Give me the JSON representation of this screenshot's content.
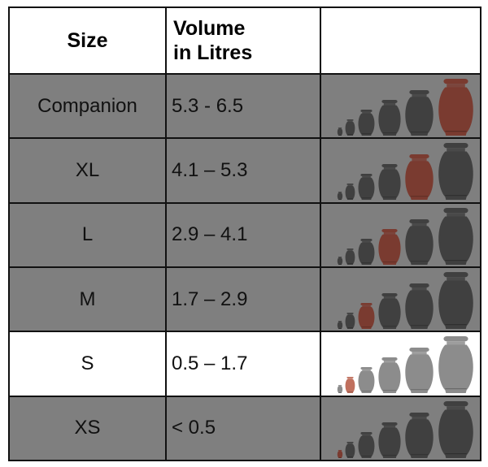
{
  "table": {
    "header": {
      "size": "Size",
      "volume_line1": "Volume",
      "volume_line2": "in Litres",
      "picture": ""
    },
    "rows": [
      {
        "size": "Companion",
        "volume": "5.3 - 6.5",
        "highlight_urn": 5,
        "shaded": true
      },
      {
        "size": "XL",
        "volume": "4.1 – 5.3",
        "highlight_urn": 4,
        "shaded": true
      },
      {
        "size": "L",
        "volume": "2.9 – 4.1",
        "highlight_urn": 3,
        "shaded": true
      },
      {
        "size": "M",
        "volume": "1.7 – 2.9",
        "highlight_urn": 2,
        "shaded": true
      },
      {
        "size": "S",
        "volume": "0.5 – 1.7",
        "highlight_urn": 1,
        "shaded": false
      },
      {
        "size": "XS",
        "volume": "< 0.5",
        "highlight_urn": 0,
        "shaded": true
      }
    ]
  },
  "colors": {
    "urn_dark": "#404040",
    "urn_light": "#8c8c8c",
    "urn_highlight": "#7a3b30",
    "urn_highlight_light": "#c0705e",
    "row_shade": "#7f7f7f"
  },
  "icons": {
    "urn": "urn-icon"
  }
}
